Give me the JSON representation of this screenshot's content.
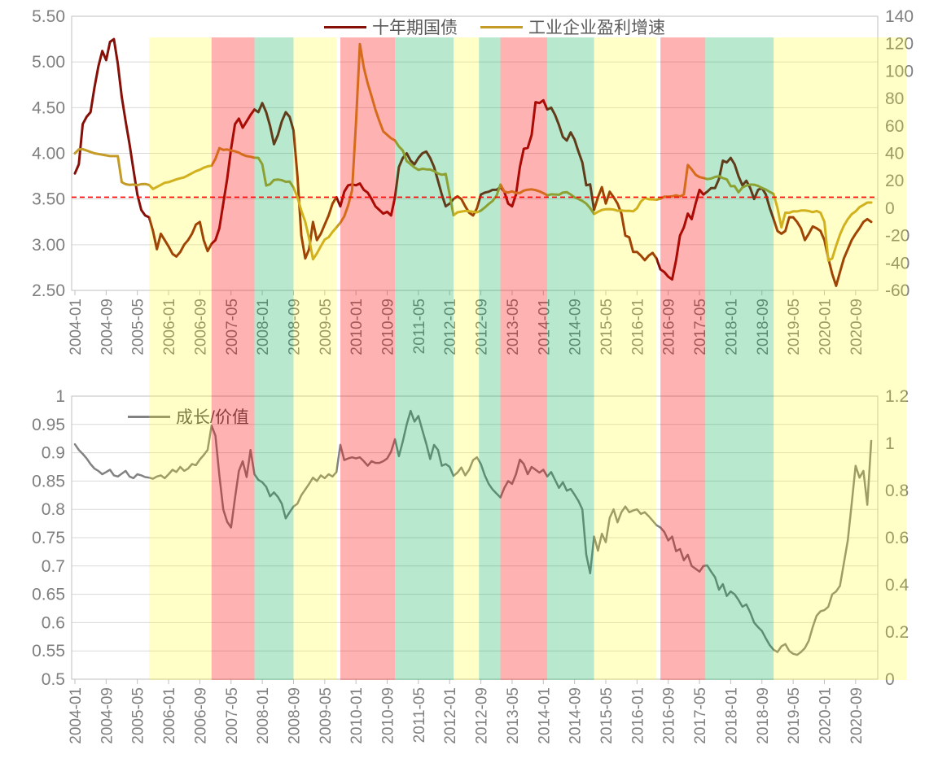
{
  "x_domain": {
    "start": "2004-01",
    "end": "2021-01",
    "months": 205,
    "tick_every": 8
  },
  "styles": {
    "grid_color": "#D9D9D9",
    "border_color": "#BFBFBF",
    "axis_text_color": "#7F7F7F",
    "legend_text_color": "#595959",
    "background": "#FFFFFF"
  },
  "regime_bands": {
    "colors": {
      "yellow": "rgba(255,255,0,0.22)",
      "red": "rgba(255,0,0,0.30)",
      "green": "rgba(0,176,80,0.28)"
    },
    "segments": [
      {
        "from": 19,
        "to": 35,
        "color": "yellow"
      },
      {
        "from": 35,
        "to": 46,
        "color": "red"
      },
      {
        "from": 46,
        "to": 56,
        "color": "green"
      },
      {
        "from": 56,
        "to": 67,
        "color": "yellow"
      },
      {
        "from": 68,
        "to": 82,
        "color": "red"
      },
      {
        "from": 82,
        "to": 97,
        "color": "green"
      },
      {
        "from": 97,
        "to": 103.5,
        "color": "yellow"
      },
      {
        "from": 103.5,
        "to": 109,
        "color": "green"
      },
      {
        "from": 109,
        "to": 121,
        "color": "red"
      },
      {
        "from": 121,
        "to": 133,
        "color": "green"
      },
      {
        "from": 133,
        "to": 149,
        "color": "yellow"
      },
      {
        "from": 150,
        "to": 161.5,
        "color": "red"
      },
      {
        "from": 161.5,
        "to": 179,
        "color": "green"
      },
      {
        "from": 179,
        "to": 213,
        "color": "yellow"
      }
    ]
  },
  "chart_data": [
    {
      "type": "line",
      "title": "",
      "x_tick_labels": [
        "2004-01",
        "2004-09",
        "2005-05",
        "2006-01",
        "2006-09",
        "2007-05",
        "2008-01",
        "2008-09",
        "2009-05",
        "2010-01",
        "2010-09",
        "2011-05",
        "2012-01",
        "2012-09",
        "2013-05",
        "2014-01",
        "2014-09",
        "2015-05",
        "2016-01",
        "2016-09",
        "2017-05",
        "2018-01",
        "2018-09",
        "2019-05",
        "2020-01",
        "2020-09"
      ],
      "left_axis": {
        "min": 2.5,
        "max": 5.5,
        "step": 0.5,
        "labels": [
          "5.50",
          "5.00",
          "4.50",
          "4.00",
          "3.50",
          "3.00",
          "2.50"
        ]
      },
      "right_axis": {
        "min": -60,
        "max": 140,
        "step": 20,
        "labels": [
          "140",
          "120",
          "100",
          "80",
          "60",
          "40",
          "20",
          "0",
          "-20",
          "-40",
          "-60"
        ]
      },
      "reference_line": {
        "value": 3.52,
        "axis": "left",
        "color": "#FF0000",
        "style": "dashed"
      },
      "series": [
        {
          "name": "十年期国债",
          "axis": "left",
          "color": "#861008",
          "width": 3,
          "values": [
            3.78,
            3.88,
            4.32,
            4.4,
            4.45,
            4.72,
            4.95,
            5.12,
            5.02,
            5.22,
            5.25,
            4.98,
            4.62,
            4.35,
            4.1,
            3.82,
            3.55,
            3.38,
            3.32,
            3.3,
            3.15,
            2.95,
            3.12,
            3.05,
            2.98,
            2.9,
            2.87,
            2.92,
            3.0,
            3.05,
            3.12,
            3.22,
            3.25,
            3.05,
            2.93,
            3.01,
            3.05,
            3.18,
            3.45,
            3.72,
            4.05,
            4.32,
            4.38,
            4.28,
            4.35,
            4.42,
            4.48,
            4.45,
            4.55,
            4.45,
            4.3,
            4.1,
            4.2,
            4.35,
            4.45,
            4.4,
            4.25,
            3.75,
            3.1,
            2.85,
            2.95,
            3.25,
            3.05,
            3.12,
            3.22,
            3.32,
            3.45,
            3.52,
            3.42,
            3.58,
            3.65,
            3.66,
            3.65,
            3.67,
            3.6,
            3.57,
            3.5,
            3.42,
            3.38,
            3.34,
            3.36,
            3.32,
            3.52,
            3.85,
            3.95,
            4.0,
            3.92,
            3.88,
            3.95,
            4.0,
            4.02,
            3.95,
            3.85,
            3.7,
            3.55,
            3.42,
            3.45,
            3.5,
            3.53,
            3.5,
            3.42,
            3.35,
            3.32,
            3.4,
            3.55,
            3.57,
            3.58,
            3.6,
            3.6,
            3.63,
            3.58,
            3.45,
            3.42,
            3.55,
            3.85,
            4.05,
            4.06,
            4.2,
            4.56,
            4.55,
            4.58,
            4.48,
            4.5,
            4.42,
            4.31,
            4.18,
            4.14,
            4.23,
            4.15,
            4.02,
            3.9,
            3.65,
            3.66,
            3.38,
            3.52,
            3.63,
            3.45,
            3.58,
            3.52,
            3.45,
            3.34,
            3.1,
            3.08,
            2.92,
            2.92,
            2.88,
            2.83,
            2.88,
            2.91,
            2.85,
            2.73,
            2.7,
            2.65,
            2.62,
            2.83,
            3.1,
            3.19,
            3.34,
            3.28,
            3.45,
            3.6,
            3.55,
            3.58,
            3.62,
            3.62,
            3.72,
            3.92,
            3.9,
            3.95,
            3.88,
            3.75,
            3.65,
            3.7,
            3.62,
            3.5,
            3.6,
            3.62,
            3.55,
            3.4,
            3.28,
            3.15,
            3.12,
            3.15,
            3.3,
            3.3,
            3.25,
            3.18,
            3.05,
            3.12,
            3.2,
            3.18,
            3.15,
            3.05,
            2.85,
            2.68,
            2.55,
            2.7,
            2.85,
            2.95,
            3.05,
            3.12,
            3.18,
            3.25,
            3.28,
            3.25
          ]
        },
        {
          "name": "工业企业盈利增速",
          "axis": "right",
          "color": "#C49B27",
          "width": 3,
          "values": [
            40,
            42.9,
            43,
            42,
            41,
            40,
            39.5,
            39,
            38.5,
            38,
            38,
            38,
            19,
            17.5,
            17,
            17.2,
            16.8,
            17.5,
            17.6,
            17,
            14,
            15.5,
            17,
            18.5,
            19,
            20,
            21,
            21.8,
            22.5,
            24,
            25.5,
            27,
            28,
            29.5,
            30.5,
            31,
            36,
            43.8,
            42.5,
            42.8,
            42.1,
            41.5,
            40.5,
            39,
            38,
            37.5,
            36.8,
            36.7,
            32,
            16.5,
            17.5,
            20.6,
            20.9,
            20.4,
            19.2,
            19.4,
            15,
            8,
            -1.9,
            -10,
            -22,
            -37.3,
            -33,
            -27.8,
            -22.9,
            -21.2,
            -17.3,
            -14,
            -10.6,
            -6,
            2,
            13,
            62,
            119.7,
            102.6,
            91,
            81.6,
            71.8,
            63.5,
            56,
            53.5,
            51,
            49.4,
            45,
            42,
            34.3,
            32,
            29.7,
            27.9,
            28.7,
            28.3,
            28.2,
            27,
            25.3,
            24.4,
            25,
            10,
            -5.2,
            -3,
            -2.5,
            -2,
            -2.2,
            -2.7,
            -3,
            -1.8,
            0.5,
            3,
            5.3,
            9,
            17.2,
            12.1,
            11.4,
            12.3,
            11.1,
            11.1,
            12.8,
            13.5,
            13.7,
            13.2,
            12.2,
            11,
            9.4,
            10.1,
            10,
            9.8,
            11.4,
            11.7,
            10,
            7.9,
            6.7,
            5.3,
            3.3,
            0,
            -4.2,
            -2.7,
            -1.3,
            -0.8,
            -0.7,
            -1,
            -1.9,
            -1.7,
            -2,
            -1.9,
            -2.3,
            0,
            4.8,
            7.4,
            6.5,
            6.4,
            6.2,
            6.9,
            8.4,
            8.4,
            8.6,
            9.4,
            8.5,
            10,
            31.5,
            28.3,
            24.4,
            22.7,
            22,
            21.2,
            21.6,
            22.8,
            23.3,
            21.9,
            21,
            16,
            16.1,
            11.6,
            15,
            16.5,
            17.2,
            17.1,
            16.2,
            14.7,
            13.6,
            11.8,
            10.3,
            0,
            -14,
            -3.3,
            -3.4,
            -2.3,
            -2.4,
            -1.7,
            -1.7,
            -2.1,
            -2.9,
            -2.1,
            -3.3,
            -10,
            -38.3,
            -36.7,
            -27.4,
            -19.3,
            -12.8,
            -8.1,
            -4.4,
            -2.4,
            0.7,
            2.4,
            4.1,
            4.1
          ]
        }
      ]
    },
    {
      "type": "line",
      "title": "",
      "x_tick_labels": [
        "2004-01",
        "2004-09",
        "2005-05",
        "2006-01",
        "2006-09",
        "2007-05",
        "2008-01",
        "2008-09",
        "2009-05",
        "2010-01",
        "2010-09",
        "2011-05",
        "2012-01",
        "2012-09",
        "2013-05",
        "2014-01",
        "2014-09",
        "2015-05",
        "2016-01",
        "2016-09",
        "2017-05",
        "2018-01",
        "2018-09",
        "2019-05",
        "2020-01",
        "2020-09"
      ],
      "left_axis": {
        "min": 0.5,
        "max": 1,
        "step": 0.05,
        "labels": [
          "1",
          "0.95",
          "0.9",
          "0.85",
          "0.8",
          "0.75",
          "0.7",
          "0.65",
          "0.6",
          "0.55",
          "0.5"
        ]
      },
      "right_axis": {
        "min": 0,
        "max": 1.2,
        "step": 0.2,
        "labels": [
          "1.2",
          "1",
          "0.8",
          "0.6",
          "0.4",
          "0.2",
          "0"
        ]
      },
      "series": [
        {
          "name": "成长/价值",
          "axis": "left",
          "color": "#828282",
          "width": 2.5,
          "values": [
            0.915,
            0.905,
            0.898,
            0.89,
            0.88,
            0.872,
            0.868,
            0.862,
            0.866,
            0.87,
            0.86,
            0.858,
            0.863,
            0.868,
            0.858,
            0.855,
            0.862,
            0.86,
            0.857,
            0.856,
            0.854,
            0.858,
            0.86,
            0.855,
            0.862,
            0.87,
            0.866,
            0.875,
            0.868,
            0.872,
            0.88,
            0.878,
            0.888,
            0.896,
            0.905,
            0.948,
            0.93,
            0.86,
            0.8,
            0.778,
            0.768,
            0.82,
            0.868,
            0.885,
            0.857,
            0.905,
            0.862,
            0.852,
            0.848,
            0.84,
            0.823,
            0.83,
            0.822,
            0.81,
            0.784,
            0.795,
            0.805,
            0.81,
            0.825,
            0.835,
            0.845,
            0.856,
            0.85,
            0.86,
            0.855,
            0.862,
            0.858,
            0.866,
            0.914,
            0.887,
            0.89,
            0.892,
            0.89,
            0.892,
            0.885,
            0.877,
            0.885,
            0.882,
            0.882,
            0.885,
            0.89,
            0.902,
            0.924,
            0.894,
            0.92,
            0.95,
            0.974,
            0.955,
            0.965,
            0.94,
            0.916,
            0.889,
            0.914,
            0.905,
            0.877,
            0.88,
            0.875,
            0.859,
            0.865,
            0.874,
            0.86,
            0.87,
            0.887,
            0.892,
            0.88,
            0.86,
            0.845,
            0.835,
            0.828,
            0.821,
            0.838,
            0.85,
            0.845,
            0.862,
            0.888,
            0.88,
            0.862,
            0.875,
            0.87,
            0.865,
            0.87,
            0.858,
            0.866,
            0.852,
            0.838,
            0.848,
            0.833,
            0.836,
            0.826,
            0.815,
            0.8,
            0.72,
            0.687,
            0.752,
            0.727,
            0.757,
            0.742,
            0.785,
            0.8,
            0.777,
            0.795,
            0.805,
            0.795,
            0.798,
            0.8,
            0.792,
            0.795,
            0.788,
            0.78,
            0.772,
            0.768,
            0.76,
            0.745,
            0.752,
            0.726,
            0.73,
            0.71,
            0.72,
            0.7,
            0.695,
            0.69,
            0.7,
            0.701,
            0.69,
            0.68,
            0.658,
            0.668,
            0.647,
            0.655,
            0.65,
            0.64,
            0.628,
            0.632,
            0.618,
            0.6,
            0.592,
            0.585,
            0.572,
            0.56,
            0.552,
            0.548,
            0.558,
            0.562,
            0.55,
            0.545,
            0.543,
            0.548,
            0.555,
            0.568,
            0.592,
            0.612,
            0.62,
            0.622,
            0.628,
            0.65,
            0.655,
            0.665,
            0.705,
            0.745,
            0.81,
            0.877,
            0.856,
            0.868,
            0.808,
            0.921
          ]
        }
      ]
    }
  ]
}
